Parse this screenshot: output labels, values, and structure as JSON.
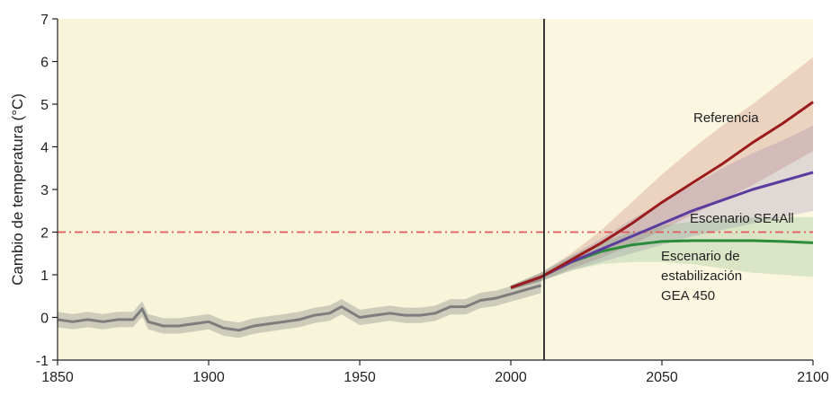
{
  "chart_data": {
    "type": "line",
    "ylabel": "Cambio de temperatura (°C)",
    "xlim": [
      1850,
      2100
    ],
    "ylim": [
      -1,
      7
    ],
    "x_ticks": [
      1850,
      1900,
      1950,
      2000,
      2050,
      2100
    ],
    "y_ticks": [
      -1,
      0,
      1,
      2,
      3,
      4,
      5,
      6,
      7
    ],
    "reference_line": {
      "y": 2,
      "style": "dash-dot",
      "color": "#e05a5a"
    },
    "divider_x": 2011,
    "colors": {
      "historical": "#7d7d7d",
      "referencia": "#9b1c1c",
      "se4all": "#5a3c9e",
      "gea450": "#2a8c3a",
      "background_past": "#f8f4da",
      "background_future": "#fbf6df"
    },
    "annotations": {
      "referencia": "Referencia",
      "se4all": "Escenario SE4All",
      "gea450_line1": "Escenario de",
      "gea450_line2": "estabilización",
      "gea450_line3": "GEA 450"
    },
    "historical": {
      "x": [
        1850,
        1855,
        1860,
        1865,
        1870,
        1875,
        1878,
        1880,
        1885,
        1890,
        1895,
        1900,
        1905,
        1910,
        1915,
        1920,
        1925,
        1930,
        1935,
        1940,
        1944,
        1950,
        1955,
        1960,
        1965,
        1970,
        1975,
        1980,
        1985,
        1990,
        1995,
        2000,
        2005,
        2010
      ],
      "y": [
        -0.05,
        -0.1,
        -0.05,
        -0.1,
        -0.05,
        -0.05,
        0.2,
        -0.1,
        -0.2,
        -0.2,
        -0.15,
        -0.1,
        -0.25,
        -0.3,
        -0.2,
        -0.15,
        -0.1,
        -0.05,
        0.05,
        0.1,
        0.25,
        0.0,
        0.05,
        0.1,
        0.05,
        0.05,
        0.1,
        0.25,
        0.25,
        0.4,
        0.45,
        0.55,
        0.65,
        0.75
      ],
      "band": 0.18
    },
    "series": [
      {
        "key": "referencia",
        "x": [
          2000,
          2010,
          2020,
          2030,
          2040,
          2050,
          2060,
          2070,
          2080,
          2090,
          2100
        ],
        "y": [
          0.7,
          0.95,
          1.35,
          1.75,
          2.2,
          2.7,
          3.15,
          3.6,
          4.1,
          4.55,
          5.05
        ],
        "upper": [
          0.75,
          1.05,
          1.5,
          2.05,
          2.7,
          3.35,
          3.95,
          4.5,
          5.0,
          5.55,
          6.1
        ],
        "lower": [
          0.65,
          0.85,
          1.15,
          1.4,
          1.7,
          2.05,
          2.4,
          2.75,
          3.1,
          3.5,
          3.9
        ]
      },
      {
        "key": "se4all",
        "x": [
          2000,
          2010,
          2020,
          2030,
          2040,
          2050,
          2060,
          2070,
          2080,
          2090,
          2100
        ],
        "y": [
          0.7,
          0.95,
          1.3,
          1.6,
          1.9,
          2.2,
          2.5,
          2.75,
          3.0,
          3.2,
          3.4
        ],
        "upper": [
          0.75,
          1.05,
          1.45,
          1.85,
          2.3,
          2.7,
          3.1,
          3.5,
          3.85,
          4.15,
          4.5
        ],
        "lower": [
          0.65,
          0.85,
          1.1,
          1.3,
          1.5,
          1.7,
          1.9,
          2.05,
          2.2,
          2.35,
          2.5
        ]
      },
      {
        "key": "gea450",
        "x": [
          2000,
          2010,
          2020,
          2030,
          2040,
          2050,
          2060,
          2070,
          2080,
          2090,
          2100
        ],
        "y": [
          0.7,
          0.95,
          1.3,
          1.55,
          1.7,
          1.78,
          1.8,
          1.8,
          1.8,
          1.78,
          1.75
        ],
        "upper": [
          0.75,
          1.05,
          1.45,
          1.75,
          2.0,
          2.15,
          2.25,
          2.3,
          2.35,
          2.35,
          2.35
        ],
        "lower": [
          0.65,
          0.85,
          1.1,
          1.25,
          1.3,
          1.3,
          1.25,
          1.15,
          1.05,
          1.0,
          0.95
        ]
      }
    ]
  }
}
